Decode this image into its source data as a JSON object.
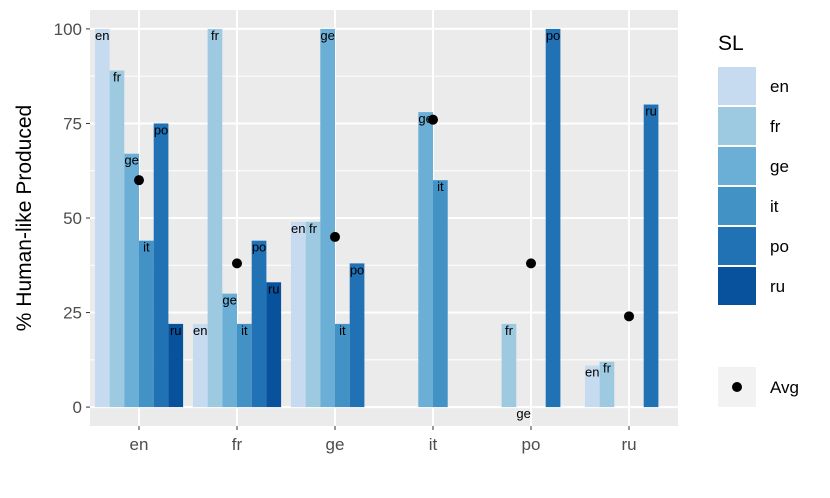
{
  "chart_data": {
    "type": "bar",
    "title": "",
    "xlabel": "",
    "ylabel": "% Human-like Produced",
    "ylim": [
      -5,
      105
    ],
    "yticks": [
      0,
      25,
      50,
      75,
      100
    ],
    "categories": [
      "en",
      "fr",
      "ge",
      "it",
      "po",
      "ru"
    ],
    "legend": {
      "title": "SL",
      "position": "right",
      "avg_label": "Avg"
    },
    "series": [
      {
        "name": "en",
        "color": "#c6dbef",
        "values": [
          100,
          22,
          49,
          null,
          null,
          11
        ]
      },
      {
        "name": "fr",
        "color": "#9ecae1",
        "values": [
          89,
          100,
          49,
          null,
          22,
          12
        ]
      },
      {
        "name": "ge",
        "color": "#6baed6",
        "values": [
          67,
          30,
          100,
          78,
          0,
          null
        ]
      },
      {
        "name": "it",
        "color": "#4292c6",
        "values": [
          44,
          22,
          22,
          60,
          null,
          null
        ]
      },
      {
        "name": "po",
        "color": "#2171b5",
        "values": [
          75,
          44,
          38,
          null,
          100,
          80
        ]
      },
      {
        "name": "ru",
        "color": "#08519c",
        "values": [
          22,
          33,
          null,
          null,
          null,
          null
        ]
      }
    ],
    "bar_labels": [
      [
        "en",
        "fr",
        "ge",
        "it",
        "po",
        "ru"
      ],
      [
        "en",
        "fr",
        "ge",
        "it",
        "po",
        "ru"
      ],
      [
        "en",
        "fr",
        "ge",
        "it",
        "po",
        ""
      ],
      [
        "en",
        "",
        "ge",
        "it",
        "",
        ""
      ],
      [
        "",
        "fr",
        "ge",
        "",
        "po",
        ""
      ],
      [
        "en",
        "fr",
        "",
        "",
        "ru",
        ""
      ]
    ],
    "average": {
      "name": "Avg",
      "values": [
        60,
        38,
        45,
        76,
        38,
        24
      ]
    }
  }
}
